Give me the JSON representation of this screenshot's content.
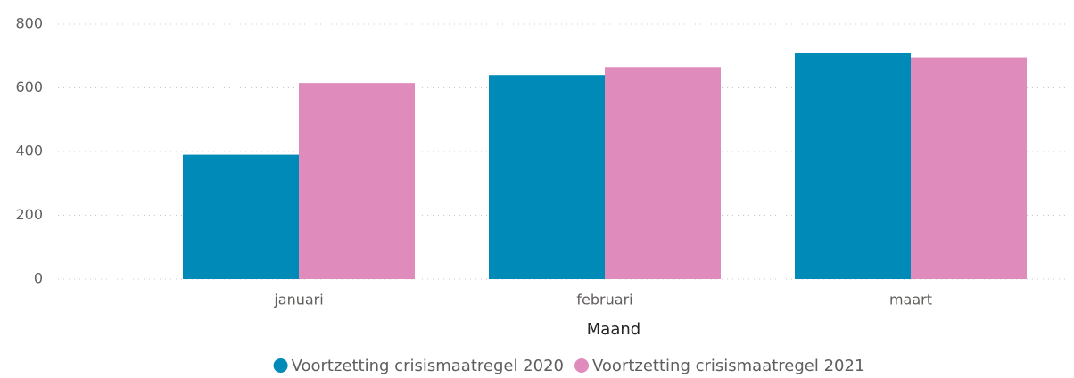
{
  "chart_data": {
    "type": "bar",
    "x_label": "Maand",
    "categories": [
      "januari",
      "februari",
      "maart"
    ],
    "series": [
      {
        "name": "Voortzetting crisismaatregel 2020",
        "color": "#008ab8",
        "values": [
          390,
          640,
          710
        ]
      },
      {
        "name": "Voortzetting crisismaatregel 2021",
        "color": "#df8cbc",
        "values": [
          615,
          665,
          695
        ]
      }
    ],
    "ylim": [
      0,
      800
    ],
    "yticks": [
      0,
      200,
      400,
      600,
      800
    ],
    "grid": true,
    "legend": "bottom"
  }
}
